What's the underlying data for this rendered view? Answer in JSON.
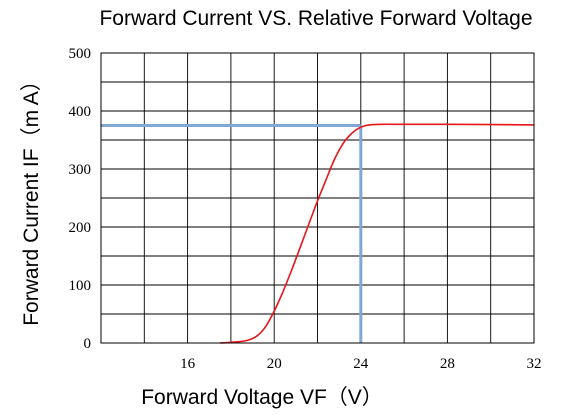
{
  "chart_data": {
    "type": "line",
    "title": "Forward Current VS. Relative Forward Voltage",
    "xlabel": "Forward Voltage VF（V）",
    "ylabel": "Forward Current IF（m A）",
    "xlim": [
      12,
      32
    ],
    "ylim": [
      0,
      500
    ],
    "x_ticks": [
      16,
      20,
      24,
      28,
      32
    ],
    "y_ticks": [
      0,
      100,
      200,
      300,
      400,
      500
    ],
    "x_minor_step": 2,
    "y_minor_step": 50,
    "grid": true,
    "series": [
      {
        "color": "#e8161b",
        "points": [
          [
            17.5,
            0
          ],
          [
            18.3,
            2
          ],
          [
            18.8,
            5
          ],
          [
            19.2,
            12
          ],
          [
            19.6,
            28
          ],
          [
            20.0,
            55
          ],
          [
            20.4,
            88
          ],
          [
            20.8,
            125
          ],
          [
            21.2,
            165
          ],
          [
            21.6,
            205
          ],
          [
            22.0,
            245
          ],
          [
            22.4,
            282
          ],
          [
            22.8,
            318
          ],
          [
            23.2,
            345
          ],
          [
            23.6,
            362
          ],
          [
            24.0,
            372
          ],
          [
            24.4,
            376
          ],
          [
            25.0,
            377
          ],
          [
            26.0,
            377
          ],
          [
            28.0,
            377
          ],
          [
            30.0,
            376.5
          ],
          [
            32.0,
            376
          ]
        ]
      }
    ],
    "reference_point": {
      "x": 24.0,
      "y": 375,
      "color": "#7fa8d4"
    }
  }
}
